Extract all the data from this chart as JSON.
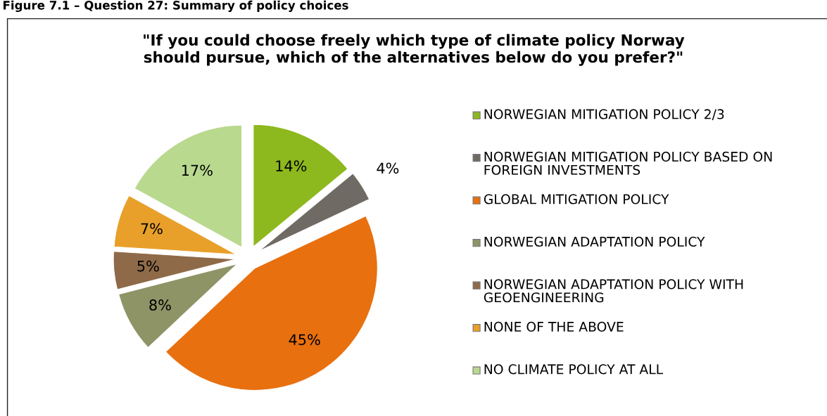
{
  "chart_data": {
    "type": "pie",
    "title": "\"If you could choose freely which type of climate policy Norway\nshould pursue, which of the alternatives below do you prefer?\"",
    "annotations": [
      "Figure 7.1 – Question 27: Summary of policy choices"
    ],
    "categories": [
      "NORWEGIAN MITIGATION POLICY 2/3",
      "NORWEGIAN MITIGATION POLICY BASED ON FOREIGN INVESTMENTS",
      "GLOBAL MITIGATION POLICY",
      "NORWEGIAN ADAPTATION POLICY",
      "NORWEGIAN ADAPTATION POLICY WITH GEOENGINEERING",
      "NONE OF THE ABOVE",
      "NO CLIMATE POLICY AT ALL"
    ],
    "values": [
      14,
      4,
      45,
      8,
      5,
      7,
      17
    ],
    "value_labels": [
      "14%",
      "4%",
      "45%",
      "8%",
      "5%",
      "7%",
      "17%"
    ],
    "colors": [
      "#8db81e",
      "#6f6a63",
      "#e8700f",
      "#8e9466",
      "#8f6a48",
      "#e8a02a",
      "#b9d98f"
    ],
    "legend": "right"
  }
}
